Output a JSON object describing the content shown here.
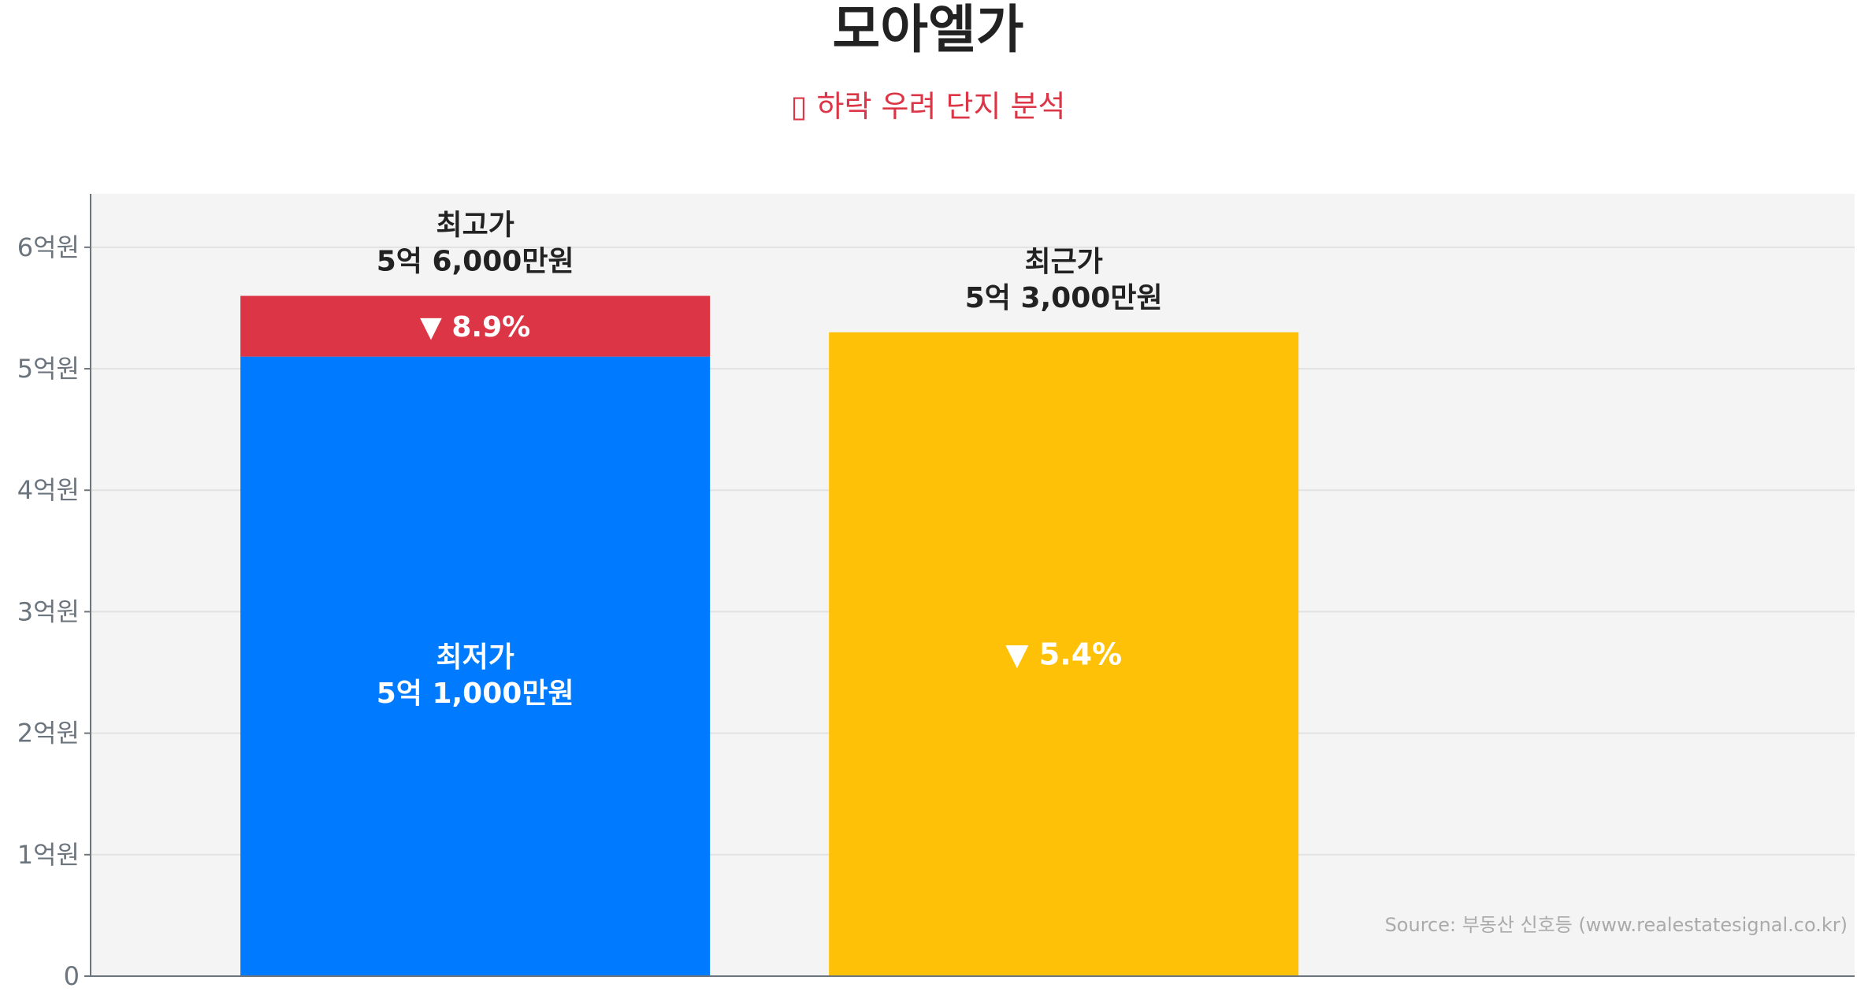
{
  "chart_data": {
    "type": "bar",
    "title": "모아엘가",
    "subtitle": "▯ 하락 우려 단지 분석",
    "unit": "억원",
    "ylim": [
      0,
      6.44
    ],
    "yticks": [
      {
        "value": 0,
        "label": "0"
      },
      {
        "value": 1,
        "label": "1억원"
      },
      {
        "value": 2,
        "label": "2억원"
      },
      {
        "value": 3,
        "label": "3억원"
      },
      {
        "value": 4,
        "label": "4억원"
      },
      {
        "value": 5,
        "label": "5억원"
      },
      {
        "value": 6,
        "label": "6억원"
      }
    ],
    "grid": true,
    "bars": [
      {
        "category": "최고가/최저가",
        "low": 5.1,
        "high": 5.6,
        "top_label": [
          "최고가",
          "5억 6,000만원"
        ],
        "inner_label": [
          "최저가",
          "5억 1,000만원"
        ],
        "drop_label": "▼ 8.9%"
      },
      {
        "category": "최근가",
        "value": 5.3,
        "top_label": [
          "최근가",
          "5억 3,000만원"
        ],
        "inner_label": "▼ 5.4%"
      }
    ],
    "colors": {
      "low": "#007bff",
      "drop": "#dc3545",
      "recent": "#ffc107",
      "plot_bg": "#f4f4f4",
      "title": "#222222",
      "subtitle": "#dc3545"
    },
    "source": "Source: 부동산 신호등 (www.realestatesignal.co.kr)"
  }
}
